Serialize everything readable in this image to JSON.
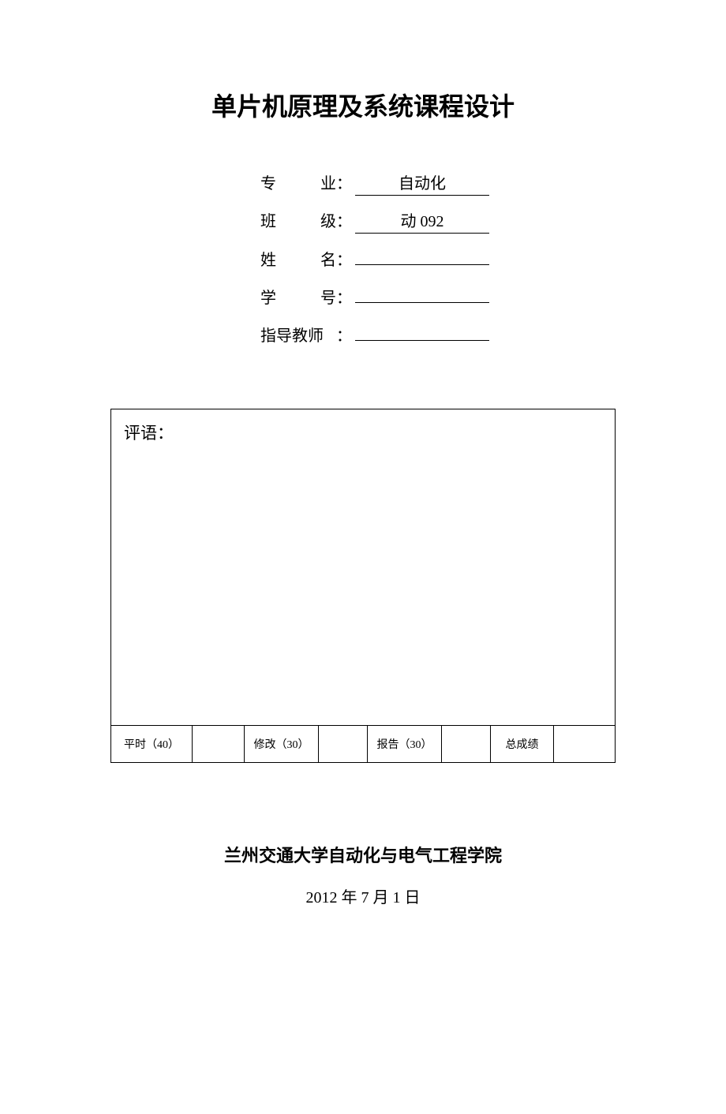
{
  "title": "单片机原理及系统课程设计",
  "fields": {
    "major": {
      "label_char1": "专",
      "label_char2": "业",
      "value": "自动化"
    },
    "class": {
      "label_char1": "班",
      "label_char2": "级",
      "value": "动 092"
    },
    "name": {
      "label_char1": "姓",
      "label_char2": "名",
      "value": ""
    },
    "student_id": {
      "label_char1": "学",
      "label_char2": "号",
      "value": ""
    },
    "advisor": {
      "label_full": "指导教师",
      "value": ""
    }
  },
  "comment": {
    "label": "评语："
  },
  "scores": {
    "usual": {
      "label": "平时（40）",
      "value": ""
    },
    "revision": {
      "label": "修改（30）",
      "value": ""
    },
    "report": {
      "label": "报告（30）",
      "value": ""
    },
    "total": {
      "label": "总成绩",
      "value": ""
    }
  },
  "footer": {
    "institution": "兰州交通大学自动化与电气工程学院",
    "date": "2012 年 7 月 1 日"
  },
  "style": {
    "text_color": "#000000",
    "background_color": "#ffffff",
    "border_color": "#000000",
    "title_fontsize": 32,
    "field_fontsize": 20,
    "comment_fontsize": 21,
    "score_fontsize": 14,
    "institution_fontsize": 22,
    "date_fontsize": 20
  }
}
